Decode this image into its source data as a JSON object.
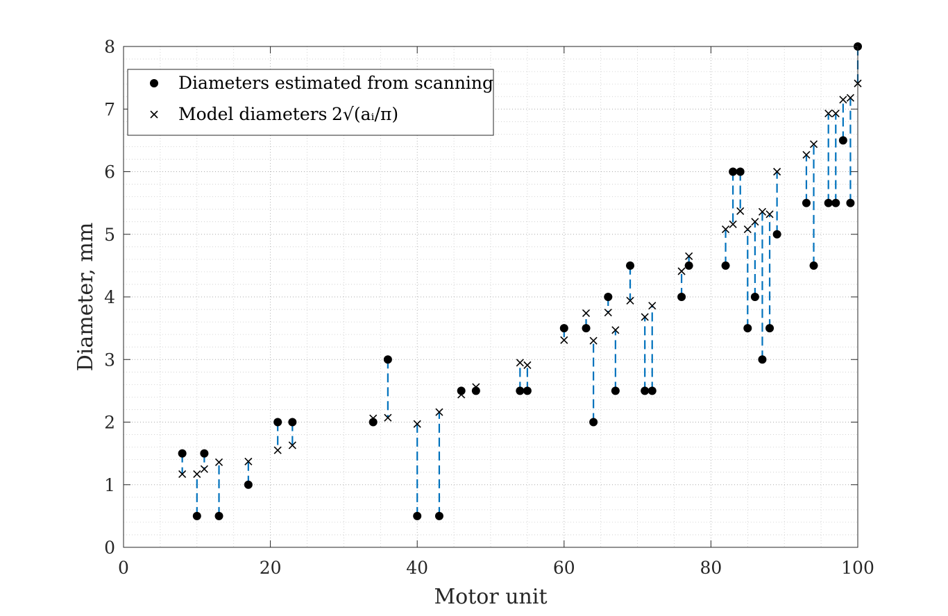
{
  "chart_data": {
    "type": "scatter",
    "xlabel": "Motor unit",
    "ylabel": "Diameter, mm",
    "xlim": [
      0,
      100
    ],
    "ylim": [
      0,
      8
    ],
    "xticks": [
      0,
      20,
      40,
      60,
      80,
      100
    ],
    "yticks": [
      0,
      1,
      2,
      3,
      4,
      5,
      6,
      7,
      8
    ],
    "grid": "major and minor dotted",
    "legend_position": "top-left",
    "colors": {
      "connector": "#0072BD",
      "markers": "#000000",
      "axes": "#262626"
    },
    "series": [
      {
        "name": "Diameters estimated from scanning",
        "marker": "filled-circle",
        "x": [
          8,
          10,
          11,
          13,
          17,
          21,
          23,
          34,
          36,
          40,
          43,
          46,
          48,
          54,
          55,
          60,
          63,
          64,
          66,
          67,
          69,
          71,
          72,
          76,
          77,
          82,
          83,
          84,
          85,
          86,
          87,
          88,
          89,
          93,
          94,
          96,
          97,
          98,
          99,
          100
        ],
        "y": [
          1.5,
          0.5,
          1.5,
          0.5,
          1.0,
          2.0,
          2.0,
          2.0,
          3.0,
          0.5,
          0.5,
          2.5,
          2.5,
          2.5,
          2.5,
          3.5,
          3.5,
          2.0,
          4.0,
          2.5,
          4.5,
          2.5,
          2.5,
          4.0,
          4.5,
          4.5,
          6.0,
          6.0,
          3.5,
          4.0,
          3.0,
          3.5,
          5.0,
          5.5,
          4.5,
          5.5,
          5.5,
          6.5,
          5.5,
          8.0
        ]
      },
      {
        "name_prefix": "Model diameters",
        "name_math": "2√(aᵢ/π)",
        "marker": "cross",
        "x": [
          8,
          10,
          11,
          13,
          17,
          21,
          23,
          34,
          36,
          40,
          43,
          46,
          48,
          54,
          55,
          60,
          63,
          64,
          66,
          67,
          69,
          71,
          72,
          76,
          77,
          82,
          83,
          84,
          85,
          86,
          87,
          88,
          89,
          93,
          94,
          96,
          97,
          98,
          99,
          100
        ],
        "y": [
          1.17,
          1.17,
          1.25,
          1.36,
          1.37,
          1.55,
          1.63,
          2.06,
          2.07,
          1.97,
          2.16,
          2.44,
          2.56,
          2.95,
          2.91,
          3.31,
          3.74,
          3.3,
          3.75,
          3.47,
          3.94,
          3.68,
          3.86,
          4.41,
          4.65,
          5.08,
          5.16,
          5.37,
          5.08,
          5.2,
          5.36,
          5.32,
          6.0,
          6.27,
          6.44,
          6.93,
          6.93,
          7.15,
          7.18,
          7.41
        ]
      }
    ]
  }
}
